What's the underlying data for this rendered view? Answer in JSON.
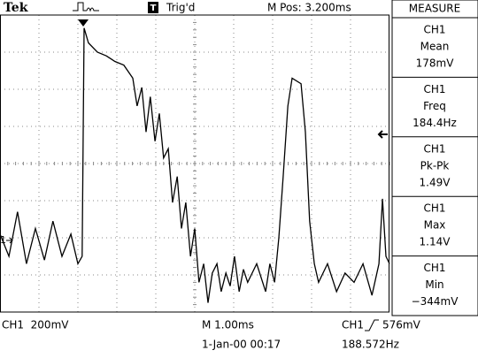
{
  "header": {
    "brand": "Tek",
    "trigger_icon": "T",
    "trigger_status": "Trig'd",
    "position": "M Pos: 3.200ms"
  },
  "measure": {
    "title": "MEASURE",
    "items": [
      {
        "channel": "CH1",
        "label": "Mean",
        "value": "178mV"
      },
      {
        "channel": "CH1",
        "label": "Freq",
        "value": "184.4Hz"
      },
      {
        "channel": "CH1",
        "label": "Pk-Pk",
        "value": "1.49V"
      },
      {
        "channel": "CH1",
        "label": "Max",
        "value": "1.14V"
      },
      {
        "channel": "CH1",
        "label": "Min",
        "value": "−344mV"
      }
    ]
  },
  "screen": {
    "ground_marker": "1"
  },
  "footer": {
    "ch1_scale": "CH1  200mV",
    "timebase": "M 1.00ms",
    "trigger_channel": "CH1",
    "trigger_level": "576mV",
    "date": "1-Jan-00 00:17",
    "frequency": "188.572Hz"
  },
  "waveform": {
    "xlim": [
      0,
      10
    ],
    "ylim": [
      -0.39,
      1.21
    ],
    "x": [
      0,
      0.23,
      0.45,
      0.68,
      0.91,
      1.14,
      1.36,
      1.59,
      1.82,
      2.0,
      2.11,
      2.16,
      2.27,
      2.5,
      2.73,
      2.95,
      3.18,
      3.41,
      3.52,
      3.64,
      3.75,
      3.86,
      3.98,
      4.09,
      4.2,
      4.32,
      4.43,
      4.55,
      4.66,
      4.77,
      4.89,
      5.0,
      5.11,
      5.23,
      5.34,
      5.45,
      5.57,
      5.68,
      5.8,
      5.91,
      6.02,
      6.14,
      6.25,
      6.36,
      6.59,
      6.82,
      6.93,
      7.05,
      7.16,
      7.27,
      7.39,
      7.5,
      7.73,
      7.84,
      7.95,
      8.07,
      8.18,
      8.41,
      8.64,
      8.86,
      9.09,
      9.32,
      9.55,
      9.73,
      9.82,
      9.91,
      10
    ],
    "values": [
      0.03,
      -0.09,
      0.15,
      -0.13,
      0.06,
      -0.11,
      0.1,
      -0.09,
      0.03,
      -0.13,
      -0.09,
      1.14,
      1.06,
      1.01,
      0.99,
      0.96,
      0.94,
      0.87,
      0.72,
      0.82,
      0.58,
      0.77,
      0.53,
      0.68,
      0.44,
      0.49,
      0.2,
      0.34,
      0.06,
      0.2,
      -0.09,
      0.06,
      -0.23,
      -0.13,
      -0.34,
      -0.18,
      -0.13,
      -0.28,
      -0.18,
      -0.25,
      -0.09,
      -0.28,
      -0.16,
      -0.23,
      -0.13,
      -0.28,
      -0.13,
      -0.23,
      0.01,
      0.34,
      0.72,
      0.87,
      0.84,
      0.58,
      0.1,
      -0.13,
      -0.23,
      -0.13,
      -0.28,
      -0.18,
      -0.23,
      -0.13,
      -0.3,
      -0.13,
      0.22,
      -0.09,
      -0.13
    ]
  }
}
